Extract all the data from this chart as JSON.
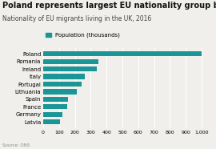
{
  "title": "Poland represents largest EU nationality group by far",
  "subtitle": "Nationality of EU migrants living in the UK, 2016",
  "legend_label": "Population (thousands)",
  "source": "Source: ONS",
  "categories": [
    "Poland",
    "Romania",
    "Ireland",
    "Italy",
    "Portugal",
    "Lithuania",
    "Spain",
    "France",
    "Germany",
    "Latvia"
  ],
  "values": [
    1000,
    350,
    340,
    265,
    240,
    210,
    155,
    150,
    120,
    105
  ],
  "bar_color": "#1a9696",
  "background_color": "#f0efeb",
  "xlim": [
    0,
    1050
  ],
  "xticks": [
    0,
    100,
    200,
    300,
    400,
    500,
    600,
    700,
    800,
    900,
    1000
  ],
  "xtick_labels": [
    "0",
    "100",
    "200",
    "300",
    "400",
    "500",
    "600",
    "700",
    "800",
    "900",
    "1,000"
  ],
  "title_fontsize": 7.0,
  "subtitle_fontsize": 5.5,
  "legend_fontsize": 5.0,
  "tick_fontsize": 4.5,
  "label_fontsize": 5.0,
  "source_fontsize": 4.0
}
